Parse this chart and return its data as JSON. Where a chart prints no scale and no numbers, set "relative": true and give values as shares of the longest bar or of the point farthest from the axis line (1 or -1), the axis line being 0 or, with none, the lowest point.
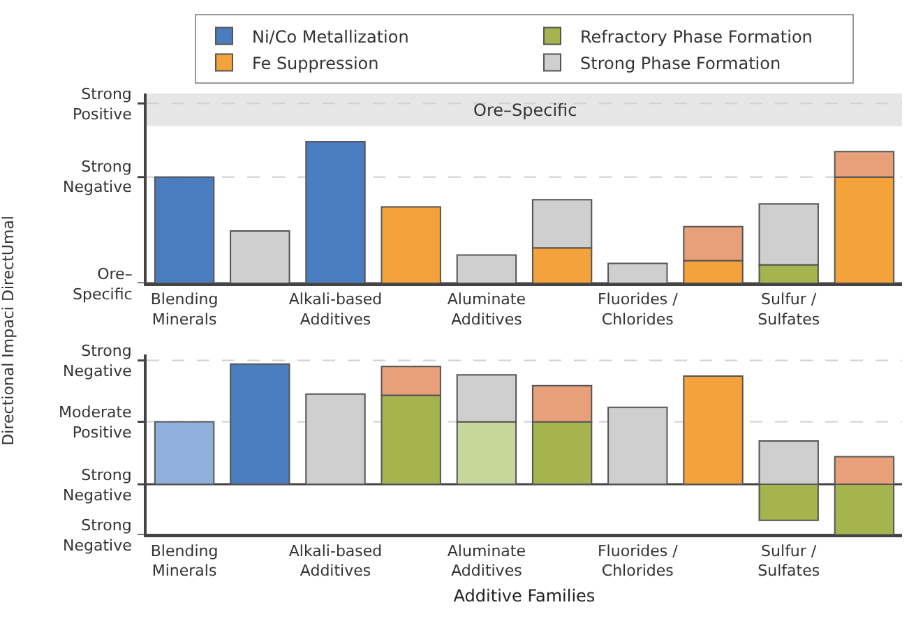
{
  "chart_data": [
    {
      "type": "bar",
      "stacked": true,
      "relative": true,
      "ylabel": "Directional Impaci DirectUmal",
      "legend": "top",
      "categories": [
        "Blending\nMinerals",
        null,
        "Alkali-based\nAdditives",
        null,
        "Aluminate\nAdditives",
        null,
        "Fluorides /\nChlorides",
        null,
        "Sulfur /\nSulfates",
        null
      ],
      "ref_lines": [
        {
          "axis": "y",
          "value": 0,
          "label": "Ore–\nSpecific",
          "color": "#444444"
        },
        {
          "axis": "y",
          "value": 0.75,
          "label": "Strong\nNegative",
          "color": "#d0d0d0",
          "line_style": "dashed"
        },
        {
          "axis": "y",
          "value": 1.27,
          "label": "Strong\nPositive",
          "color": "#d0d0d0",
          "line_style": "dashed"
        }
      ],
      "bands": [
        {
          "axis": "y",
          "from": 1.11,
          "to": 1.34,
          "label": "Ore–Specific",
          "color": "#e6e6e6"
        }
      ],
      "series": [
        {
          "name": "Ni/Co Metallization",
          "color": "#4a7cc0",
          "values": [
            0.75,
            null,
            1.0,
            null,
            null,
            null,
            null,
            null,
            null,
            null
          ]
        },
        {
          "name": "Refractory Phase Formation",
          "color": "#a5b44e",
          "values": [
            null,
            null,
            null,
            null,
            null,
            null,
            null,
            null,
            0.13,
            null
          ]
        },
        {
          "name": "Fe Suppression",
          "color": "#f4a23c",
          "values": [
            null,
            null,
            null,
            0.54,
            null,
            0.25,
            null,
            0.16,
            null,
            0.75
          ]
        },
        {
          "name": "Strong Phase Formation",
          "color": "#cfcfcf",
          "values": [
            null,
            0.37,
            null,
            null,
            0.2,
            0.34,
            0.14,
            null,
            0.43,
            null
          ]
        },
        {
          "color": "#e8a07a",
          "values": [
            null,
            null,
            null,
            null,
            null,
            null,
            null,
            0.24,
            null,
            0.18
          ]
        }
      ]
    },
    {
      "type": "bar",
      "stacked": true,
      "relative": true,
      "xlabel": "Additive Families",
      "categories": [
        "Blending\nMinerals",
        null,
        "Alkali-based\nAdditives",
        null,
        "Aluminate\nAdditives",
        null,
        "Fluorides /\nChlorides",
        null,
        "Sulfur /\nSulfates",
        null
      ],
      "ref_lines": [
        {
          "axis": "y",
          "value": -0.42,
          "label": "Strong\nNegative",
          "color": "#444444"
        },
        {
          "axis": "y",
          "value": 0,
          "label": "Strong\nNegative",
          "color": "#444444"
        },
        {
          "axis": "y",
          "value": 0.52,
          "label": "Moderate\nPositive",
          "color": "#d0d0d0",
          "line_style": "dashed"
        },
        {
          "axis": "y",
          "value": 1.03,
          "label": "Strong\nNegative",
          "color": "#d0d0d0",
          "line_style": "dashed"
        }
      ],
      "series": [
        {
          "color": "#8fb0da",
          "values": [
            0.52,
            null,
            null,
            null,
            null,
            null,
            null,
            null,
            null,
            null
          ]
        },
        {
          "color": "#c5d79a",
          "values": [
            null,
            null,
            null,
            null,
            0.52,
            null,
            null,
            null,
            null,
            null
          ]
        },
        {
          "color": "#a5b44e",
          "values": [
            null,
            null,
            null,
            0.74,
            null,
            0.52,
            null,
            null,
            -0.3,
            -0.42
          ]
        },
        {
          "color": "#4a7cc0",
          "values": [
            null,
            1.0,
            null,
            null,
            null,
            null,
            null,
            null,
            null,
            null
          ]
        },
        {
          "color": "#f4a23c",
          "values": [
            null,
            null,
            null,
            null,
            null,
            null,
            null,
            0.9,
            null,
            null
          ]
        },
        {
          "color": "#cfcfcf",
          "values": [
            null,
            null,
            0.75,
            null,
            0.39,
            null,
            0.64,
            null,
            0.36,
            null
          ]
        },
        {
          "color": "#e8a07a",
          "values": [
            null,
            null,
            null,
            0.24,
            null,
            0.3,
            null,
            null,
            null,
            0.23
          ]
        }
      ]
    }
  ]
}
